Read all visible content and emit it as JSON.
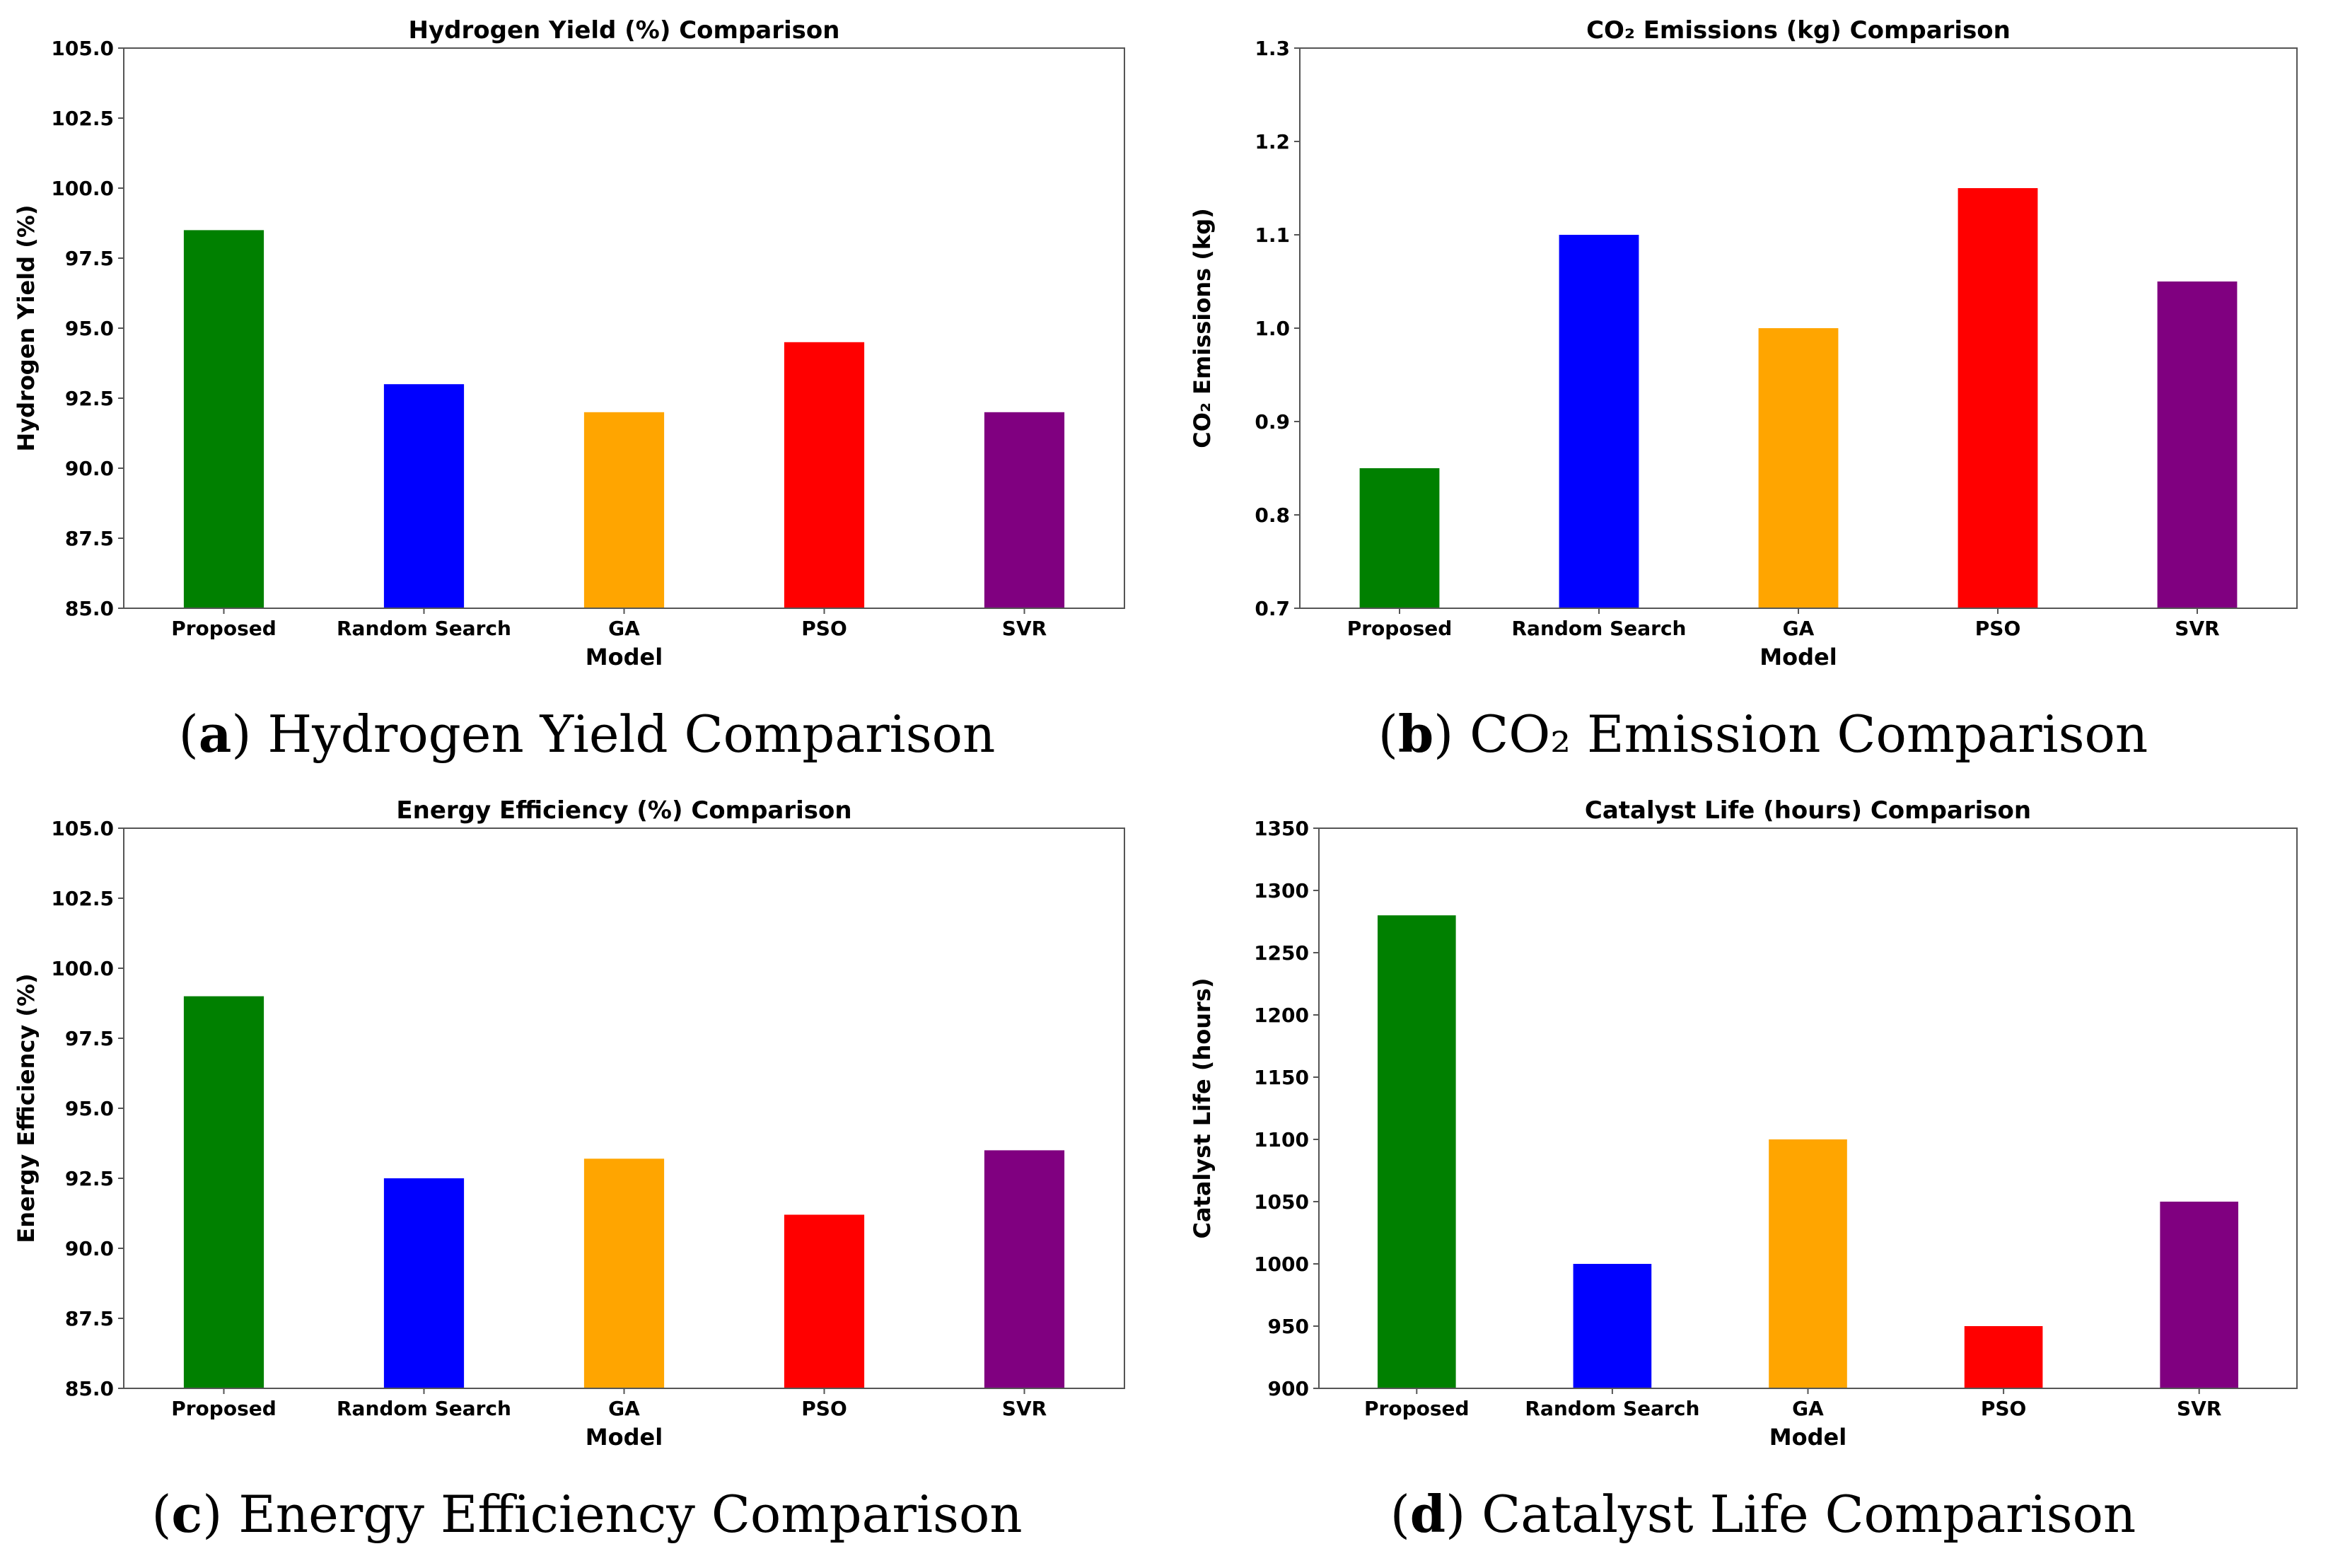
{
  "chart_data": [
    {
      "type": "bar",
      "title": "Hydrogen Yield (%) Comparison",
      "xlabel": "Model",
      "ylabel": "Hydrogen Yield (%)",
      "categories": [
        "Proposed",
        "Random Search",
        "GA",
        "PSO",
        "SVR"
      ],
      "values": [
        98.5,
        93.0,
        92.0,
        94.5,
        92.0
      ],
      "colors": [
        "#008000",
        "#0000ff",
        "#ffa500",
        "#ff0000",
        "#800080"
      ],
      "ylim": [
        85.0,
        105.0
      ],
      "yticks": [
        "85.0",
        "87.5",
        "90.0",
        "92.5",
        "95.0",
        "97.5",
        "100.0",
        "102.5",
        "105.0"
      ],
      "grid": false
    },
    {
      "type": "bar",
      "title": "CO₂ Emissions (kg) Comparison",
      "xlabel": "Model",
      "ylabel": "CO₂ Emissions (kg)",
      "categories": [
        "Proposed",
        "Random Search",
        "GA",
        "PSO",
        "SVR"
      ],
      "values": [
        0.85,
        1.1,
        1.0,
        1.15,
        1.05
      ],
      "colors": [
        "#008000",
        "#0000ff",
        "#ffa500",
        "#ff0000",
        "#800080"
      ],
      "ylim": [
        0.7,
        1.3
      ],
      "yticks": [
        "0.7",
        "0.8",
        "0.9",
        "1.0",
        "1.1",
        "1.2",
        "1.3"
      ],
      "grid": false
    },
    {
      "type": "bar",
      "title": "Energy Efficiency (%) Comparison",
      "xlabel": "Model",
      "ylabel": "Energy Efficiency (%)",
      "categories": [
        "Proposed",
        "Random Search",
        "GA",
        "PSO",
        "SVR"
      ],
      "values": [
        99.0,
        92.5,
        93.2,
        91.2,
        93.5
      ],
      "colors": [
        "#008000",
        "#0000ff",
        "#ffa500",
        "#ff0000",
        "#800080"
      ],
      "ylim": [
        85.0,
        105.0
      ],
      "yticks": [
        "85.0",
        "87.5",
        "90.0",
        "92.5",
        "95.0",
        "97.5",
        "100.0",
        "102.5",
        "105.0"
      ],
      "grid": false
    },
    {
      "type": "bar",
      "title": "Catalyst Life (hours) Comparison",
      "xlabel": "Model",
      "ylabel": "Catalyst Life (hours)",
      "categories": [
        "Proposed",
        "Random Search",
        "GA",
        "PSO",
        "SVR"
      ],
      "values": [
        1280,
        1000,
        1100,
        950,
        1050
      ],
      "colors": [
        "#008000",
        "#0000ff",
        "#ffa500",
        "#ff0000",
        "#800080"
      ],
      "ylim": [
        900,
        1350
      ],
      "yticks": [
        "900",
        "950",
        "1000",
        "1050",
        "1100",
        "1150",
        "1200",
        "1250",
        "1300",
        "1350"
      ],
      "grid": false
    }
  ],
  "captions": [
    {
      "letter": "a",
      "text": "Hydrogen Yield Comparison"
    },
    {
      "letter": "b",
      "text": "CO₂ Emission Comparison"
    },
    {
      "letter": "c",
      "text": "Energy Efficiency Comparison"
    },
    {
      "letter": "d",
      "text": "Catalyst Life Comparison"
    }
  ]
}
